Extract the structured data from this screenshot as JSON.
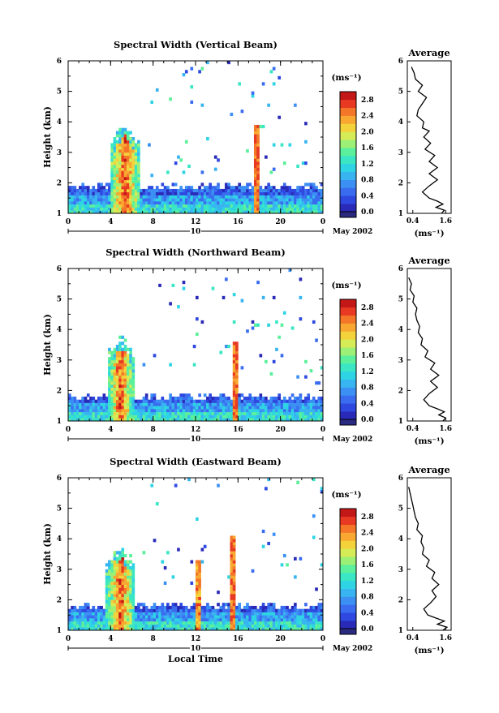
{
  "figure": {
    "date_label": "May 2002",
    "day_label": "10",
    "xlabel": "Local Time",
    "ylabel": "Height (km)",
    "unit_label": "(ms⁻¹)",
    "avg_title": "Average"
  },
  "chart_data": [
    {
      "type": "heatmap",
      "title": "Spectral Width (Vertical Beam)",
      "xlabel": "",
      "ylabel": "Height (km)",
      "xlim": [
        0,
        24
      ],
      "ylim": [
        1,
        6
      ],
      "xticks": [
        "0",
        "4",
        "8",
        "12",
        "16",
        "20",
        "0"
      ],
      "yticks": [
        "1",
        "2",
        "3",
        "4",
        "5",
        "6"
      ],
      "colorbar": {
        "label": "(ms⁻¹)",
        "ticks": [
          "0.0",
          "0.4",
          "0.8",
          "1.2",
          "1.6",
          "2.0",
          "2.4",
          "2.8"
        ],
        "range": [
          0,
          3.0
        ]
      },
      "features": {
        "convection_start_h": 3.9,
        "convection_end_h": 6.8,
        "convection_top_km": 3.8,
        "vertical_line_h": 17.8,
        "vertical_line_top_km": 3.9,
        "layer_top_km": 1.9
      },
      "average_profile": {
        "title": "Average",
        "xlabel": "(ms⁻¹)",
        "xticks": [
          "0.4",
          "1.6"
        ],
        "xlim": [
          0.2,
          1.8
        ],
        "yticks": [
          "1",
          "2",
          "3",
          "4",
          "5",
          "6"
        ],
        "height": [
          1.0,
          1.1,
          1.2,
          1.3,
          1.4,
          1.5,
          1.7,
          1.9,
          2.1,
          2.3,
          2.5,
          2.7,
          2.9,
          3.1,
          3.3,
          3.5,
          3.7,
          3.8,
          4.0,
          4.2,
          4.4,
          4.6,
          4.8,
          5.0,
          5.2,
          5.4,
          5.6,
          5.8
        ],
        "width": [
          1.45,
          1.55,
          1.25,
          1.5,
          1.3,
          1.0,
          0.75,
          1.0,
          1.3,
          1.0,
          1.3,
          1.0,
          1.2,
          0.85,
          1.05,
          0.8,
          1.0,
          0.75,
          0.8,
          0.55,
          0.6,
          0.75,
          0.9,
          0.6,
          0.75,
          0.5,
          0.45,
          0.35
        ]
      }
    },
    {
      "type": "heatmap",
      "title": "Spectral Width (Northward Beam)",
      "xlabel": "",
      "ylabel": "Height (km)",
      "xlim": [
        0,
        24
      ],
      "ylim": [
        1,
        6
      ],
      "xticks": [
        "0",
        "4",
        "8",
        "12",
        "16",
        "20",
        "0"
      ],
      "yticks": [
        "1",
        "2",
        "3",
        "4",
        "5",
        "6"
      ],
      "colorbar": {
        "label": "(ms⁻¹)",
        "ticks": [
          "0.0",
          "0.4",
          "0.8",
          "1.2",
          "1.6",
          "2.0",
          "2.4",
          "2.8"
        ],
        "range": [
          0,
          3.0
        ]
      },
      "features": {
        "convection_start_h": 3.7,
        "convection_end_h": 6.2,
        "convection_top_km": 3.7,
        "vertical_line_h": 15.8,
        "vertical_line_top_km": 3.6,
        "layer_top_km": 1.8
      },
      "average_profile": {
        "title": "Average",
        "xlabel": "(ms⁻¹)",
        "xticks": [
          "0.4",
          "1.6"
        ],
        "xlim": [
          0.2,
          1.8
        ],
        "yticks": [
          "1",
          "2",
          "3",
          "4",
          "5",
          "6"
        ],
        "height": [
          1.0,
          1.1,
          1.2,
          1.3,
          1.4,
          1.5,
          1.7,
          1.9,
          2.1,
          2.3,
          2.5,
          2.7,
          2.9,
          3.1,
          3.3,
          3.5,
          3.7,
          3.9,
          4.1,
          4.3,
          4.5,
          4.7,
          4.9,
          5.1,
          5.3,
          5.5,
          5.7
        ],
        "width": [
          1.5,
          1.6,
          1.35,
          1.55,
          1.3,
          1.0,
          0.8,
          1.0,
          1.3,
          1.05,
          1.35,
          1.05,
          1.2,
          0.85,
          0.95,
          0.7,
          0.75,
          0.6,
          0.65,
          0.55,
          0.5,
          0.55,
          0.4,
          0.45,
          0.3,
          0.35,
          0.25
        ]
      }
    },
    {
      "type": "heatmap",
      "title": "Spectral Width (Eastward Beam)",
      "xlabel": "Local Time",
      "ylabel": "Height (km)",
      "xlim": [
        0,
        24
      ],
      "ylim": [
        1,
        6
      ],
      "xticks": [
        "0",
        "4",
        "8",
        "12",
        "16",
        "20",
        "0"
      ],
      "yticks": [
        "1",
        "2",
        "3",
        "4",
        "5",
        "6"
      ],
      "colorbar": {
        "label": "(ms⁻¹)",
        "ticks": [
          "0.0",
          "0.4",
          "0.8",
          "1.2",
          "1.6",
          "2.0",
          "2.4",
          "2.8"
        ],
        "range": [
          0,
          3.0
        ]
      },
      "features": {
        "convection_start_h": 3.6,
        "convection_end_h": 6.3,
        "convection_top_km": 3.7,
        "vertical_line_h": 15.5,
        "vertical_line_top_km": 4.1,
        "second_line_h": 12.3,
        "second_line_top_km": 3.3,
        "layer_top_km": 1.8
      },
      "average_profile": {
        "title": "Average",
        "xlabel": "(ms⁻¹)",
        "xticks": [
          "0.4",
          "1.6"
        ],
        "xlim": [
          0.2,
          1.8
        ],
        "yticks": [
          "1",
          "2",
          "3",
          "4",
          "5",
          "6"
        ],
        "height": [
          1.0,
          1.1,
          1.2,
          1.3,
          1.4,
          1.5,
          1.7,
          1.9,
          2.1,
          2.3,
          2.5,
          2.7,
          2.9,
          3.1,
          3.3,
          3.5,
          3.7,
          3.9,
          4.1,
          4.3,
          4.5,
          4.7,
          4.9,
          5.1,
          5.3,
          5.5,
          5.7
        ],
        "width": [
          1.5,
          1.65,
          1.3,
          1.55,
          1.25,
          0.95,
          0.8,
          1.05,
          1.25,
          1.1,
          1.35,
          1.1,
          1.2,
          0.9,
          1.0,
          0.75,
          0.8,
          0.7,
          0.75,
          0.55,
          0.6,
          0.5,
          0.45,
          0.4,
          0.35,
          0.3,
          0.25
        ]
      }
    }
  ]
}
